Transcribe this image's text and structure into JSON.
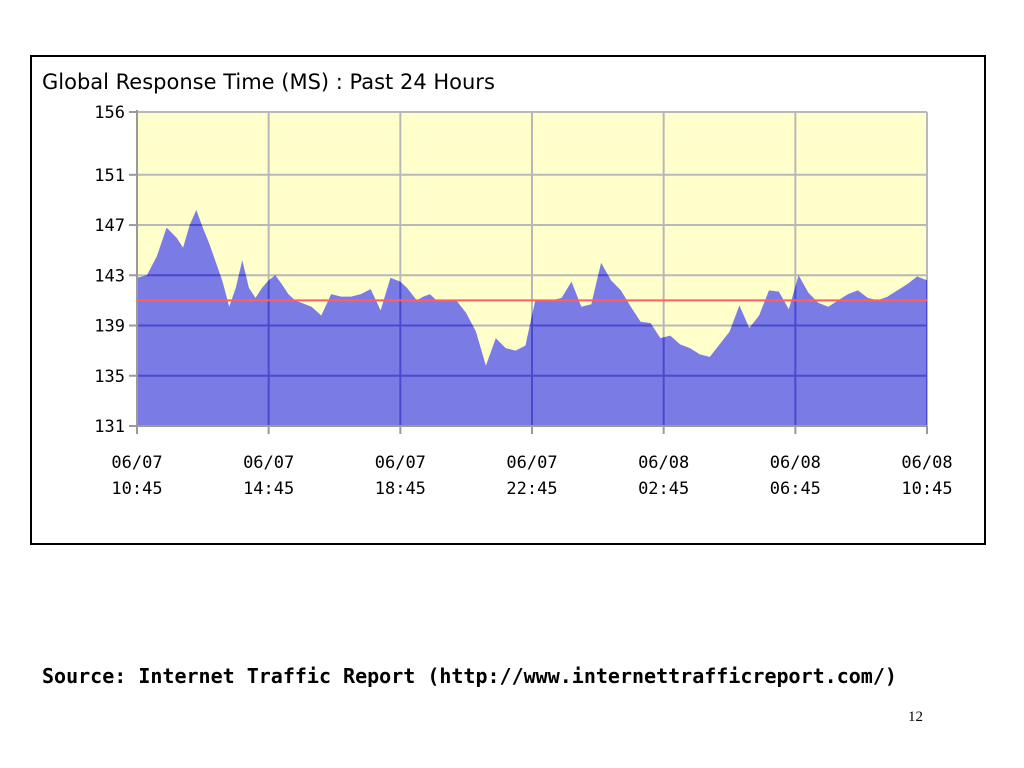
{
  "chart_data": {
    "type": "area",
    "title": "Global Response Time (MS) : Past 24 Hours",
    "xlabel": "",
    "ylabel": "",
    "ylim": [
      131,
      156
    ],
    "y_ticks": [
      "156",
      "151",
      "147",
      "143",
      "139",
      "135",
      "131"
    ],
    "x_ticks": [
      {
        "date": "06/07",
        "time": "10:45"
      },
      {
        "date": "06/07",
        "time": "14:45"
      },
      {
        "date": "06/07",
        "time": "18:45"
      },
      {
        "date": "06/07",
        "time": "22:45"
      },
      {
        "date": "06/08",
        "time": "02:45"
      },
      {
        "date": "06/08",
        "time": "06:45"
      },
      {
        "date": "06/08",
        "time": "10:45"
      }
    ],
    "x_hours": [
      0,
      0.3,
      0.6,
      0.9,
      1.2,
      1.4,
      1.6,
      1.8,
      2.0,
      2.2,
      2.4,
      2.6,
      2.8,
      3.0,
      3.2,
      3.4,
      3.6,
      3.8,
      4.0,
      4.2,
      4.4,
      4.6,
      4.8,
      5.0,
      5.3,
      5.6,
      5.9,
      6.2,
      6.5,
      6.8,
      7.1,
      7.4,
      7.7,
      8.0,
      8.2,
      8.5,
      8.7,
      8.9,
      9.1,
      9.4,
      9.7,
      10.0,
      10.3,
      10.6,
      10.9,
      11.2,
      11.5,
      11.8,
      12.1,
      12.4,
      12.6,
      12.9,
      13.2,
      13.5,
      13.8,
      14.1,
      14.4,
      14.7,
      15.0,
      15.3,
      15.6,
      15.9,
      16.2,
      16.5,
      16.8,
      17.1,
      17.4,
      17.7,
      18.0,
      18.3,
      18.6,
      18.9,
      19.2,
      19.5,
      19.8,
      20.1,
      20.4,
      20.7,
      21.0,
      21.3,
      21.6,
      21.9,
      22.2,
      22.5,
      22.8,
      23.1,
      23.4,
      23.7,
      24.0
    ],
    "values": [
      142.8,
      143.0,
      144.5,
      146.8,
      146.0,
      145.2,
      147.0,
      148.2,
      146.8,
      145.5,
      144.0,
      142.5,
      140.5,
      142.0,
      144.2,
      142.0,
      141.2,
      142.0,
      142.6,
      143.0,
      142.3,
      141.5,
      141.0,
      140.8,
      140.5,
      139.8,
      141.5,
      141.3,
      141.3,
      141.5,
      141.9,
      140.2,
      142.8,
      142.5,
      142.0,
      141.0,
      141.3,
      141.5,
      141.0,
      141.0,
      141.0,
      140.0,
      138.5,
      135.8,
      138.0,
      137.2,
      137.0,
      137.4,
      141.0,
      141.0,
      141.0,
      141.2,
      142.5,
      140.5,
      140.7,
      144.0,
      142.6,
      141.8,
      140.5,
      139.3,
      139.2,
      138.0,
      138.2,
      137.5,
      137.2,
      136.7,
      136.5,
      137.5,
      138.5,
      140.6,
      138.8,
      139.8,
      141.8,
      141.7,
      140.3,
      143.0,
      141.6,
      140.8,
      140.5,
      141.0,
      141.5,
      141.8,
      141.2,
      141.0,
      141.3,
      141.8,
      142.3,
      142.9,
      142.6
    ],
    "average_value": 141.0,
    "colors": {
      "plot_background": "#ffffcc",
      "area_fill": "#7b7be6",
      "average_line": "#ff6060",
      "grid_above": "#b8b8b8",
      "grid_below": "#4a4acc"
    }
  },
  "source_note": "Source: Internet Traffic Report (http://www.internettrafficreport.com/)",
  "page_number": "12"
}
